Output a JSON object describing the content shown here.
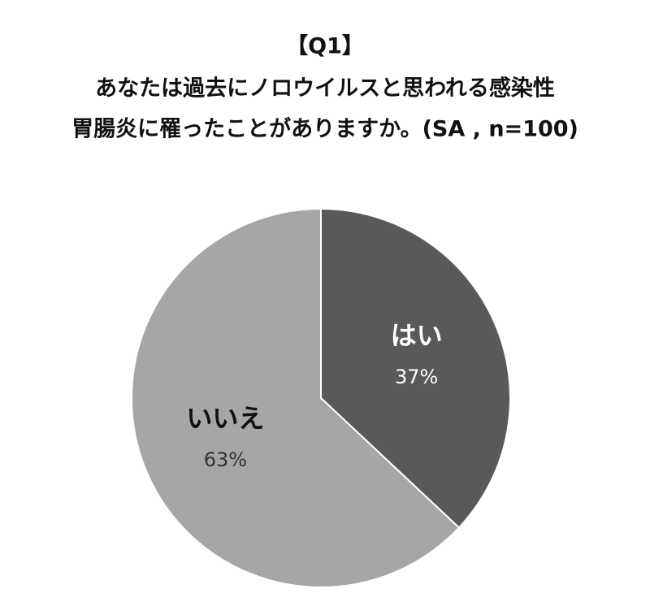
{
  "chart_data": {
    "type": "pie",
    "title": [
      "【Q1】",
      "あなたは過去にノロウイルスと思われる感染性",
      "胃腸炎に罹ったことがありますか。(SA , n=100)"
    ],
    "categories": [
      "はい",
      "いいえ"
    ],
    "values": [
      37,
      63
    ],
    "value_labels": [
      "37%",
      "63%"
    ],
    "colors": [
      "#595959",
      "#a6a6a6"
    ]
  }
}
